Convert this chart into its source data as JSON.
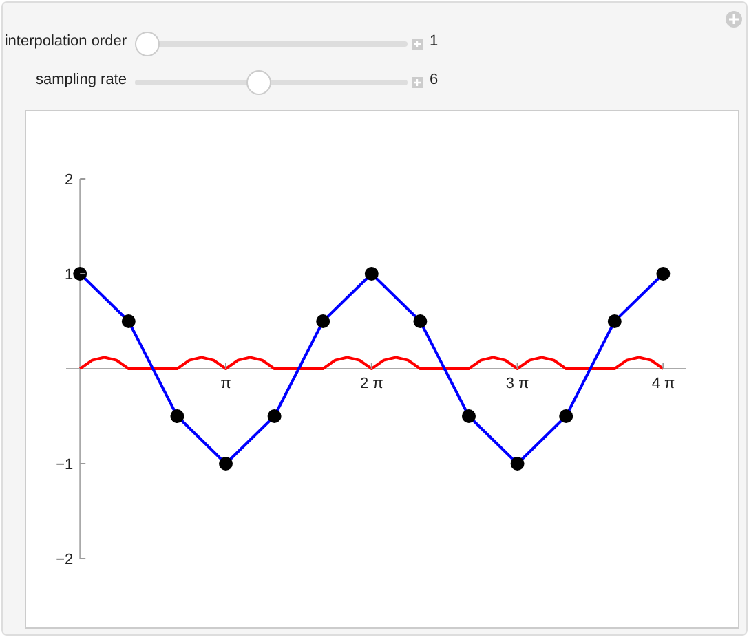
{
  "chart_data": {
    "type": "line",
    "annotations": [
      "interpolation order",
      "1",
      "sampling rate",
      "6"
    ],
    "xlim": [
      -0.3,
      13.05
    ],
    "ylim": [
      -2,
      2
    ],
    "xticks": [
      {
        "value": 3.14159,
        "label": "π"
      },
      {
        "value": 6.28319,
        "label": "2 π"
      },
      {
        "value": 9.42478,
        "label": "3 π"
      },
      {
        "value": 12.56637,
        "label": "4 π"
      }
    ],
    "yticks": [
      -2,
      -1,
      1,
      2
    ],
    "series": [
      {
        "color": "#ff0000",
        "marker": "none",
        "x": [
          0,
          0.2618,
          0.5236,
          0.7854,
          1.0472,
          1.309,
          1.5708,
          1.8326,
          2.0944,
          2.3562,
          2.618,
          2.8798,
          3.1416,
          3.4034,
          3.6652,
          3.927,
          4.1888,
          4.4506,
          4.7124,
          4.9742,
          5.236,
          5.4978,
          5.7596,
          6.0214,
          6.2832,
          6.545,
          6.8068,
          7.0686,
          7.3304,
          7.5922,
          7.854,
          8.1158,
          8.3776,
          8.6394,
          8.9012,
          9.163,
          9.4248,
          9.6866,
          9.9484,
          10.2102,
          10.472,
          10.7338,
          10.9956,
          11.2574,
          11.5192,
          11.781,
          12.0428,
          12.3046,
          12.5664
        ],
        "values": [
          0,
          0.09,
          0.12,
          0.09,
          0,
          0,
          0,
          0,
          0,
          0.09,
          0.12,
          0.09,
          0,
          0.09,
          0.12,
          0.09,
          0,
          0,
          0,
          0,
          0,
          0.09,
          0.12,
          0.09,
          0,
          0.09,
          0.12,
          0.09,
          0,
          0,
          0,
          0,
          0,
          0.09,
          0.12,
          0.09,
          0,
          0.09,
          0.12,
          0.09,
          0,
          0,
          0,
          0,
          0,
          0.09,
          0.12,
          0.09,
          0
        ]
      },
      {
        "color": "#0000ff",
        "marker": "circle",
        "x": [
          0,
          1.0472,
          2.0944,
          3.1416,
          4.1888,
          5.236,
          6.2832,
          7.3304,
          8.3776,
          9.4248,
          10.472,
          11.5192,
          12.5664
        ],
        "values": [
          1,
          0.5,
          -0.5,
          -1,
          -0.5,
          0.5,
          1,
          0.5,
          -0.5,
          -1,
          -0.5,
          0.5,
          1
        ]
      }
    ]
  }
}
